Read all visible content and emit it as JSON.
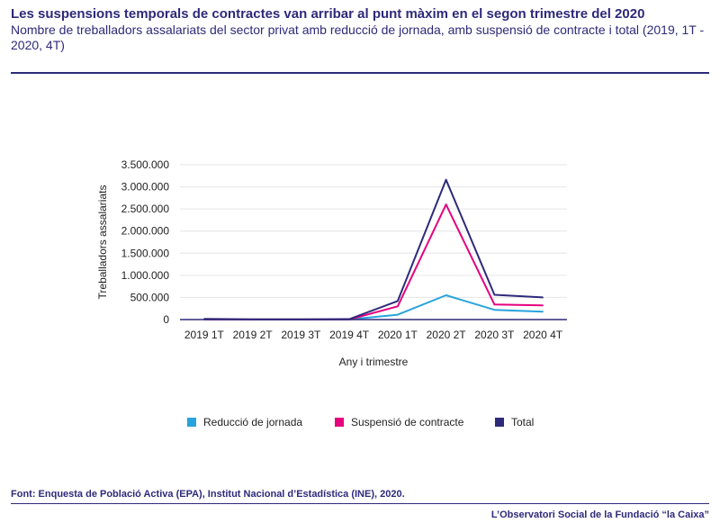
{
  "header": {
    "title": "Les suspensions temporals de contractes van arribar al punt màxim en el segon trimestre del 2020",
    "subtitle": "Nombre de treballadors assalariats del sector privat amb reducció de jornada, amb suspensió de contracte i total (2019, 1T - 2020, 4T)"
  },
  "chart_data": {
    "type": "line",
    "categories": [
      "2019 1T",
      "2019 2T",
      "2019 3T",
      "2019 4T",
      "2020 1T",
      "2020 2T",
      "2020 3T",
      "2020 4T"
    ],
    "series": [
      {
        "name": "Reducció de jornada",
        "color": "#29a3dc",
        "values": [
          5000,
          2000,
          2000,
          3000,
          110000,
          550000,
          220000,
          180000
        ]
      },
      {
        "name": "Suspensió de contracte",
        "color": "#e6007e",
        "values": [
          3000,
          2000,
          2000,
          3000,
          300000,
          2600000,
          340000,
          320000
        ]
      },
      {
        "name": "Total",
        "color": "#2e2a7a",
        "values": [
          15000,
          4000,
          4000,
          10000,
          420000,
          3160000,
          560000,
          500000
        ]
      }
    ],
    "title": "",
    "xlabel": "Any i trimestre",
    "ylabel": "Treballadors assalariats",
    "ylim": [
      0,
      3500000
    ],
    "yticks": [
      0,
      500000,
      1000000,
      1500000,
      2000000,
      2500000,
      3000000,
      3500000
    ],
    "ytick_labels": [
      "0",
      "500.000",
      "1.000.000",
      "1.500.000",
      "2.000.000",
      "2.500.000",
      "3.000.000",
      "3.500.000"
    ],
    "grid": true,
    "legend_position": "bottom"
  },
  "footer": {
    "source": "Font:  Enquesta de Població Activa (EPA), Institut Nacional d’Estadística (INE), 2020.",
    "credit": "L’Observatori Social de la Fundació “la Caixa”"
  }
}
